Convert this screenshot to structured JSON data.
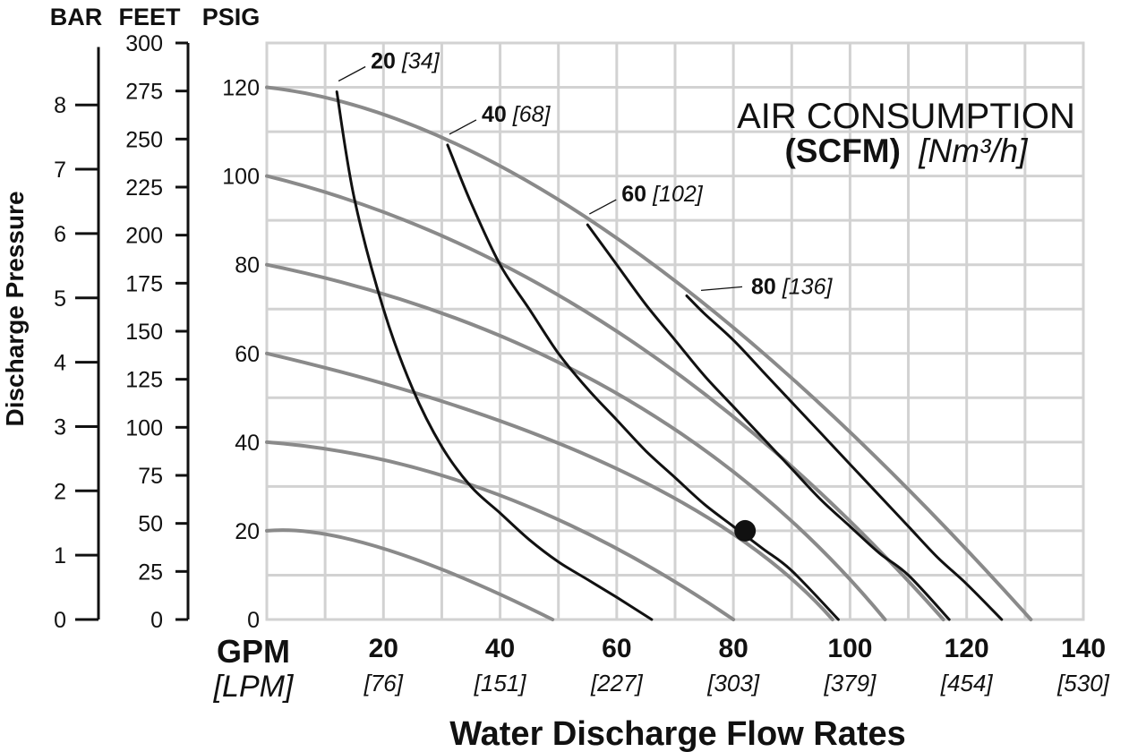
{
  "chart_data": {
    "type": "line",
    "axis_headers": {
      "bar": "BAR",
      "feet": "FEET",
      "psig": "PSIG"
    },
    "ylabel": "Discharge Pressure",
    "xlabel": "Water Discharge Flow Rates",
    "x_unit": {
      "gpm": "GPM",
      "lpm": "[LPM]"
    },
    "xlim": [
      0,
      140
    ],
    "ylim": [
      0,
      130
    ],
    "grid": true,
    "x_ticks": [
      {
        "gpm": "20",
        "lpm": "[76]"
      },
      {
        "gpm": "40",
        "lpm": "[151]"
      },
      {
        "gpm": "60",
        "lpm": "[227]"
      },
      {
        "gpm": "80",
        "lpm": "[303]"
      },
      {
        "gpm": "100",
        "lpm": "[379]"
      },
      {
        "gpm": "120",
        "lpm": "[454]"
      },
      {
        "gpm": "140",
        "lpm": "[530]"
      }
    ],
    "psig_ticks": [
      0,
      20,
      40,
      60,
      80,
      100,
      120
    ],
    "feet_ticks": [
      0,
      25,
      50,
      75,
      100,
      125,
      150,
      175,
      200,
      225,
      250,
      275,
      300
    ],
    "bar_ticks": [
      0,
      1,
      2,
      3,
      4,
      5,
      6,
      7,
      8
    ],
    "legend_title": {
      "line1": "AIR CONSUMPTION",
      "unit_bold": "(SCFM)",
      "unit_metric": "[Nm³/h]"
    },
    "pressure_series": [
      {
        "start": [
          0,
          120
        ],
        "mid": [
          60,
          86
        ],
        "end": [
          131,
          0
        ]
      },
      {
        "start": [
          0,
          100
        ],
        "mid": [
          60,
          65
        ],
        "end": [
          116,
          0
        ]
      },
      {
        "start": [
          0,
          80
        ],
        "mid": [
          60,
          51
        ],
        "end": [
          106,
          0
        ]
      },
      {
        "start": [
          0,
          60
        ],
        "mid": [
          60,
          34
        ],
        "end": [
          97,
          0
        ]
      },
      {
        "start": [
          0,
          40
        ],
        "mid": [
          40,
          28
        ],
        "end": [
          80,
          0
        ]
      },
      {
        "start": [
          0,
          20
        ],
        "mid": [
          20,
          16
        ],
        "end": [
          49,
          0
        ]
      }
    ],
    "air_series": [
      {
        "scfm": "20",
        "nm3h": "[34]",
        "points": [
          [
            12,
            119
          ],
          [
            15,
            95
          ],
          [
            20,
            70
          ],
          [
            25,
            52
          ],
          [
            30,
            39
          ],
          [
            35,
            30
          ],
          [
            40,
            24
          ],
          [
            45,
            18
          ],
          [
            50,
            13
          ],
          [
            55,
            9
          ],
          [
            60,
            5
          ],
          [
            66,
            0
          ]
        ]
      },
      {
        "scfm": "40",
        "nm3h": "[68]",
        "points": [
          [
            31,
            107
          ],
          [
            35,
            94
          ],
          [
            40,
            80
          ],
          [
            45,
            70
          ],
          [
            50,
            60
          ],
          [
            55,
            52
          ],
          [
            60,
            45
          ],
          [
            65,
            38
          ],
          [
            70,
            32
          ],
          [
            75,
            26
          ],
          [
            80,
            21
          ],
          [
            85,
            16
          ],
          [
            90,
            11
          ],
          [
            98,
            0
          ]
        ]
      },
      {
        "scfm": "60",
        "nm3h": "[102]",
        "points": [
          [
            55,
            89
          ],
          [
            60,
            80
          ],
          [
            65,
            71
          ],
          [
            70,
            63
          ],
          [
            75,
            55
          ],
          [
            80,
            48
          ],
          [
            85,
            41
          ],
          [
            90,
            34
          ],
          [
            95,
            27
          ],
          [
            100,
            21
          ],
          [
            105,
            15
          ],
          [
            110,
            10
          ],
          [
            117,
            0
          ]
        ]
      },
      {
        "scfm": "80",
        "nm3h": "[136]",
        "points": [
          [
            72,
            73
          ],
          [
            75,
            69
          ],
          [
            80,
            63
          ],
          [
            85,
            56
          ],
          [
            90,
            49
          ],
          [
            95,
            42
          ],
          [
            100,
            35
          ],
          [
            105,
            28
          ],
          [
            110,
            21
          ],
          [
            115,
            14
          ],
          [
            120,
            8
          ],
          [
            126,
            0
          ]
        ]
      }
    ],
    "marked_point": [
      82,
      20
    ]
  }
}
